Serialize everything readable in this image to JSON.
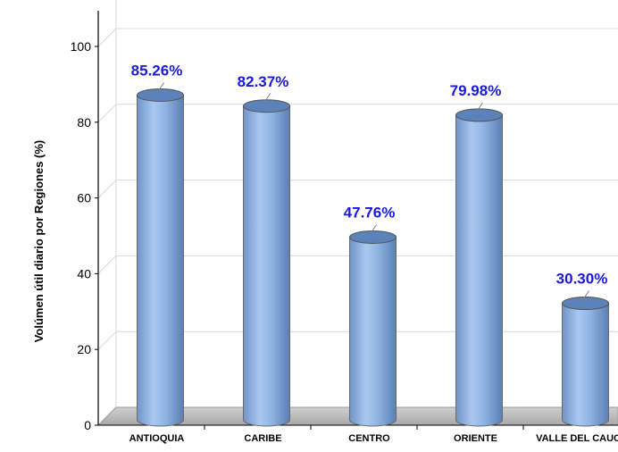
{
  "chart_data": {
    "type": "bar",
    "style": "3d-cylinder",
    "categories": [
      "ANTIOQUIA",
      "CARIBE",
      "CENTRO",
      "ORIENTE",
      "VALLE DEL CAUCA"
    ],
    "values": [
      85.26,
      82.37,
      47.76,
      79.98,
      30.3
    ],
    "data_labels": [
      "85.26%",
      "82.37%",
      "47.76%",
      "79.98%",
      "30.30%"
    ],
    "ylabel": "Volúmen útil diario por Regiones (%)",
    "xlabel": "",
    "ylim": [
      0,
      100
    ],
    "yticks": [
      0,
      20,
      40,
      60,
      80,
      100
    ],
    "grid": true,
    "colors": {
      "bar": "#8fb4e3",
      "bar_dark": "#5b82b9",
      "label": "#1a1adb",
      "floor": "#bfbfbf",
      "grid": "#d9d9d9"
    }
  }
}
